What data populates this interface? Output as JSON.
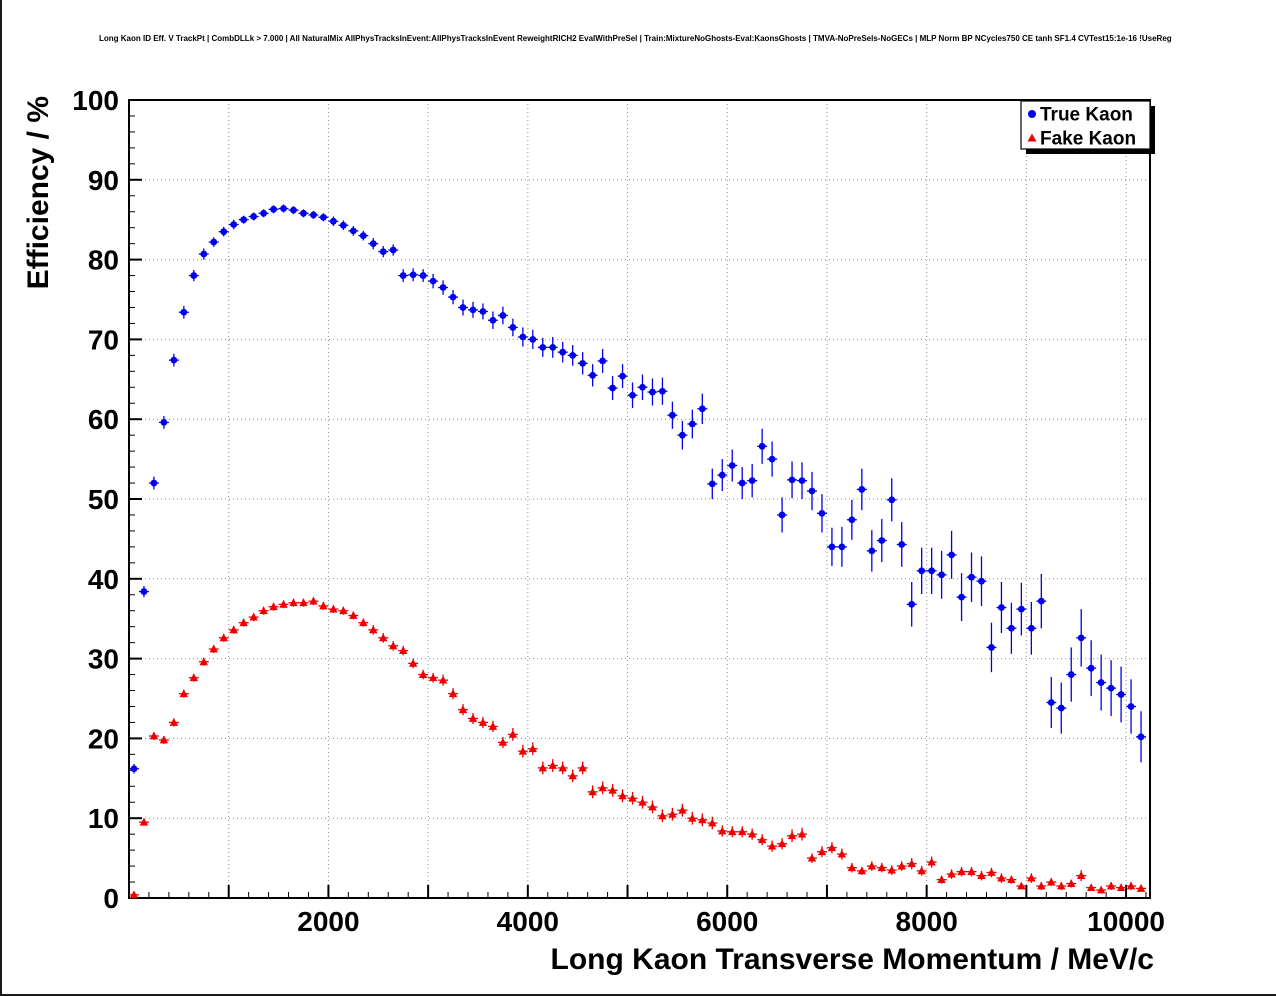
{
  "chart_data": {
    "type": "scatter",
    "title": "Long Kaon ID Eff. V TrackPt | CombDLLk > 7.000 | All NaturalMix AllPhysTracksInEvent:AllPhysTracksInEvent ReweightRICH2 EvalWithPreSel | Train:MixtureNoGhosts-Eval:KaonsGhosts | TMVA-NoPreSels-NoGECs | MLP Norm BP NCycles750 CE tanh SF1.4 CVTest15:1e-16 !UseReg",
    "xlabel": "Long Kaon Transverse Momentum / MeV/c",
    "ylabel": "Efficiency / %",
    "xlim": [
      0,
      10240
    ],
    "ylim": [
      0,
      100
    ],
    "x_major_ticks": [
      2000,
      4000,
      6000,
      8000,
      10000
    ],
    "y_ticks": [
      0,
      10,
      20,
      30,
      40,
      50,
      60,
      70,
      80,
      90,
      100
    ],
    "x_grid_step": 1000,
    "x_minor_tick_step": 200,
    "y_tick_step": 10,
    "y_minor_tick_step": 2,
    "grid": true,
    "grid_color": "#8c8c8c",
    "background": "#ffffff",
    "x_bin_halfwidth": 50,
    "legend": {
      "position": "top-right"
    },
    "series": [
      {
        "name": "True Kaon",
        "marker": "circle",
        "color": "#0000ee",
        "points": [
          [
            50,
            16.2,
            0.6
          ],
          [
            150,
            38.4,
            0.7
          ],
          [
            250,
            52.0,
            0.8
          ],
          [
            350,
            59.6,
            0.8
          ],
          [
            450,
            67.4,
            0.8
          ],
          [
            550,
            73.4,
            0.8
          ],
          [
            650,
            78.0,
            0.7
          ],
          [
            750,
            80.7,
            0.7
          ],
          [
            850,
            82.2,
            0.6
          ],
          [
            950,
            83.5,
            0.6
          ],
          [
            1050,
            84.4,
            0.6
          ],
          [
            1150,
            85.0,
            0.5
          ],
          [
            1250,
            85.4,
            0.5
          ],
          [
            1350,
            85.8,
            0.5
          ],
          [
            1450,
            86.3,
            0.5
          ],
          [
            1550,
            86.4,
            0.5
          ],
          [
            1650,
            86.2,
            0.5
          ],
          [
            1750,
            85.8,
            0.5
          ],
          [
            1850,
            85.6,
            0.5
          ],
          [
            1950,
            85.3,
            0.5
          ],
          [
            2050,
            84.8,
            0.6
          ],
          [
            2150,
            84.3,
            0.6
          ],
          [
            2250,
            83.6,
            0.6
          ],
          [
            2350,
            83.0,
            0.6
          ],
          [
            2450,
            82.0,
            0.7
          ],
          [
            2550,
            81.0,
            0.7
          ],
          [
            2650,
            81.2,
            0.7
          ],
          [
            2750,
            78.0,
            0.8
          ],
          [
            2850,
            78.1,
            0.8
          ],
          [
            2950,
            78.0,
            0.8
          ],
          [
            3050,
            77.3,
            0.9
          ],
          [
            3150,
            76.5,
            0.9
          ],
          [
            3250,
            75.3,
            0.9
          ],
          [
            3350,
            74.0,
            1.0
          ],
          [
            3450,
            73.7,
            1.0
          ],
          [
            3550,
            73.5,
            1.0
          ],
          [
            3650,
            72.4,
            1.1
          ],
          [
            3750,
            73.0,
            1.1
          ],
          [
            3850,
            71.5,
            1.1
          ],
          [
            3950,
            70.3,
            1.2
          ],
          [
            4050,
            70.0,
            1.2
          ],
          [
            4150,
            69.0,
            1.2
          ],
          [
            4250,
            69.0,
            1.3
          ],
          [
            4350,
            68.4,
            1.3
          ],
          [
            4450,
            68.0,
            1.3
          ],
          [
            4550,
            67.0,
            1.4
          ],
          [
            4650,
            65.5,
            1.4
          ],
          [
            4750,
            67.3,
            1.5
          ],
          [
            4850,
            63.9,
            1.5
          ],
          [
            4950,
            65.4,
            1.5
          ],
          [
            5050,
            63.0,
            1.6
          ],
          [
            5150,
            64.0,
            1.6
          ],
          [
            5250,
            63.4,
            1.7
          ],
          [
            5350,
            63.5,
            1.7
          ],
          [
            5450,
            60.5,
            1.7
          ],
          [
            5550,
            58.0,
            1.8
          ],
          [
            5650,
            59.4,
            1.8
          ],
          [
            5750,
            61.3,
            1.9
          ],
          [
            5850,
            51.9,
            1.9
          ],
          [
            5950,
            53.0,
            2.0
          ],
          [
            6050,
            54.2,
            2.0
          ],
          [
            6150,
            52.0,
            2.0
          ],
          [
            6250,
            52.3,
            2.1
          ],
          [
            6350,
            56.6,
            2.2
          ],
          [
            6450,
            55.0,
            2.2
          ],
          [
            6550,
            48.0,
            2.2
          ],
          [
            6650,
            52.4,
            2.3
          ],
          [
            6750,
            52.3,
            2.3
          ],
          [
            6850,
            51.0,
            2.4
          ],
          [
            6950,
            48.2,
            2.4
          ],
          [
            7050,
            44.0,
            2.4
          ],
          [
            7150,
            44.0,
            2.5
          ],
          [
            7250,
            47.4,
            2.5
          ],
          [
            7350,
            51.2,
            2.6
          ],
          [
            7450,
            43.5,
            2.6
          ],
          [
            7550,
            44.8,
            2.7
          ],
          [
            7650,
            49.9,
            2.7
          ],
          [
            7750,
            44.3,
            2.8
          ],
          [
            7850,
            36.8,
            2.8
          ],
          [
            7950,
            41.0,
            2.9
          ],
          [
            8050,
            41.0,
            2.9
          ],
          [
            8150,
            40.5,
            3.0
          ],
          [
            8250,
            43.0,
            3.0
          ],
          [
            8350,
            37.7,
            3.0
          ],
          [
            8450,
            40.2,
            3.1
          ],
          [
            8550,
            39.7,
            3.1
          ],
          [
            8650,
            31.4,
            3.1
          ],
          [
            8750,
            36.4,
            3.2
          ],
          [
            8850,
            33.8,
            3.2
          ],
          [
            8950,
            36.2,
            3.3
          ],
          [
            9050,
            33.8,
            3.3
          ],
          [
            9150,
            37.2,
            3.4
          ],
          [
            9250,
            24.5,
            3.2
          ],
          [
            9350,
            23.8,
            3.2
          ],
          [
            9450,
            28.0,
            3.4
          ],
          [
            9550,
            32.6,
            3.6
          ],
          [
            9650,
            28.8,
            3.5
          ],
          [
            9750,
            27.0,
            3.5
          ],
          [
            9850,
            26.3,
            3.5
          ],
          [
            9950,
            25.5,
            3.5
          ],
          [
            10050,
            24.0,
            3.4
          ],
          [
            10150,
            20.2,
            3.2
          ]
        ]
      },
      {
        "name": "Fake Kaon",
        "marker": "triangle",
        "color": "#ee0000",
        "points": [
          [
            50,
            0.4,
            0.1
          ],
          [
            150,
            9.5,
            0.4
          ],
          [
            250,
            20.3,
            0.5
          ],
          [
            350,
            19.8,
            0.5
          ],
          [
            450,
            22.0,
            0.5
          ],
          [
            550,
            25.6,
            0.5
          ],
          [
            650,
            27.6,
            0.5
          ],
          [
            750,
            29.6,
            0.5
          ],
          [
            850,
            31.2,
            0.5
          ],
          [
            950,
            32.6,
            0.5
          ],
          [
            1050,
            33.6,
            0.5
          ],
          [
            1150,
            34.5,
            0.5
          ],
          [
            1250,
            35.2,
            0.5
          ],
          [
            1350,
            36.0,
            0.5
          ],
          [
            1450,
            36.5,
            0.5
          ],
          [
            1550,
            36.8,
            0.5
          ],
          [
            1650,
            37.0,
            0.5
          ],
          [
            1750,
            37.0,
            0.5
          ],
          [
            1850,
            37.2,
            0.5
          ],
          [
            1950,
            36.6,
            0.5
          ],
          [
            2050,
            36.2,
            0.5
          ],
          [
            2150,
            36.0,
            0.5
          ],
          [
            2250,
            35.4,
            0.5
          ],
          [
            2350,
            34.5,
            0.5
          ],
          [
            2450,
            33.6,
            0.6
          ],
          [
            2550,
            32.6,
            0.6
          ],
          [
            2650,
            31.6,
            0.6
          ],
          [
            2750,
            31.0,
            0.6
          ],
          [
            2850,
            29.4,
            0.6
          ],
          [
            2950,
            28.0,
            0.6
          ],
          [
            3050,
            27.6,
            0.6
          ],
          [
            3150,
            27.3,
            0.7
          ],
          [
            3250,
            25.6,
            0.7
          ],
          [
            3350,
            23.6,
            0.7
          ],
          [
            3450,
            22.5,
            0.7
          ],
          [
            3550,
            22.0,
            0.7
          ],
          [
            3650,
            21.5,
            0.7
          ],
          [
            3750,
            19.5,
            0.7
          ],
          [
            3850,
            20.5,
            0.8
          ],
          [
            3950,
            18.4,
            0.8
          ],
          [
            4050,
            18.7,
            0.8
          ],
          [
            4150,
            16.3,
            0.8
          ],
          [
            4250,
            16.6,
            0.8
          ],
          [
            4350,
            16.3,
            0.8
          ],
          [
            4450,
            15.3,
            0.8
          ],
          [
            4550,
            16.3,
            0.8
          ],
          [
            4650,
            13.3,
            0.8
          ],
          [
            4750,
            13.8,
            0.8
          ],
          [
            4850,
            13.5,
            0.8
          ],
          [
            4950,
            12.8,
            0.8
          ],
          [
            5050,
            12.5,
            0.8
          ],
          [
            5150,
            12.0,
            0.8
          ],
          [
            5250,
            11.4,
            0.8
          ],
          [
            5350,
            10.3,
            0.8
          ],
          [
            5450,
            10.5,
            0.8
          ],
          [
            5550,
            11.0,
            0.8
          ],
          [
            5650,
            10.0,
            0.8
          ],
          [
            5750,
            9.8,
            0.8
          ],
          [
            5850,
            9.4,
            0.8
          ],
          [
            5950,
            8.4,
            0.7
          ],
          [
            6050,
            8.3,
            0.7
          ],
          [
            6150,
            8.3,
            0.7
          ],
          [
            6250,
            8.0,
            0.7
          ],
          [
            6350,
            7.3,
            0.7
          ],
          [
            6450,
            6.5,
            0.7
          ],
          [
            6550,
            6.8,
            0.7
          ],
          [
            6650,
            7.8,
            0.8
          ],
          [
            6750,
            8.0,
            0.8
          ],
          [
            6850,
            5.0,
            0.6
          ],
          [
            6950,
            5.8,
            0.7
          ],
          [
            7050,
            6.3,
            0.7
          ],
          [
            7150,
            5.5,
            0.7
          ],
          [
            7250,
            3.8,
            0.6
          ],
          [
            7350,
            3.4,
            0.5
          ],
          [
            7450,
            4.0,
            0.6
          ],
          [
            7550,
            3.8,
            0.6
          ],
          [
            7650,
            3.5,
            0.6
          ],
          [
            7750,
            4.0,
            0.6
          ],
          [
            7850,
            4.3,
            0.7
          ],
          [
            7950,
            3.4,
            0.6
          ],
          [
            8050,
            4.5,
            0.7
          ],
          [
            8150,
            2.3,
            0.5
          ],
          [
            8250,
            3.0,
            0.6
          ],
          [
            8350,
            3.3,
            0.6
          ],
          [
            8450,
            3.3,
            0.6
          ],
          [
            8550,
            2.8,
            0.6
          ],
          [
            8650,
            3.2,
            0.6
          ],
          [
            8750,
            2.5,
            0.6
          ],
          [
            8850,
            2.3,
            0.5
          ],
          [
            8950,
            1.5,
            0.4
          ],
          [
            9050,
            2.5,
            0.6
          ],
          [
            9150,
            1.5,
            0.5
          ],
          [
            9250,
            2.0,
            0.5
          ],
          [
            9350,
            1.5,
            0.5
          ],
          [
            9450,
            1.8,
            0.5
          ],
          [
            9550,
            2.8,
            0.7
          ],
          [
            9650,
            1.3,
            0.4
          ],
          [
            9750,
            1.0,
            0.4
          ],
          [
            9850,
            1.5,
            0.5
          ],
          [
            9950,
            1.3,
            0.4
          ],
          [
            10050,
            1.5,
            0.5
          ],
          [
            10150,
            1.2,
            0.4
          ]
        ]
      }
    ]
  }
}
